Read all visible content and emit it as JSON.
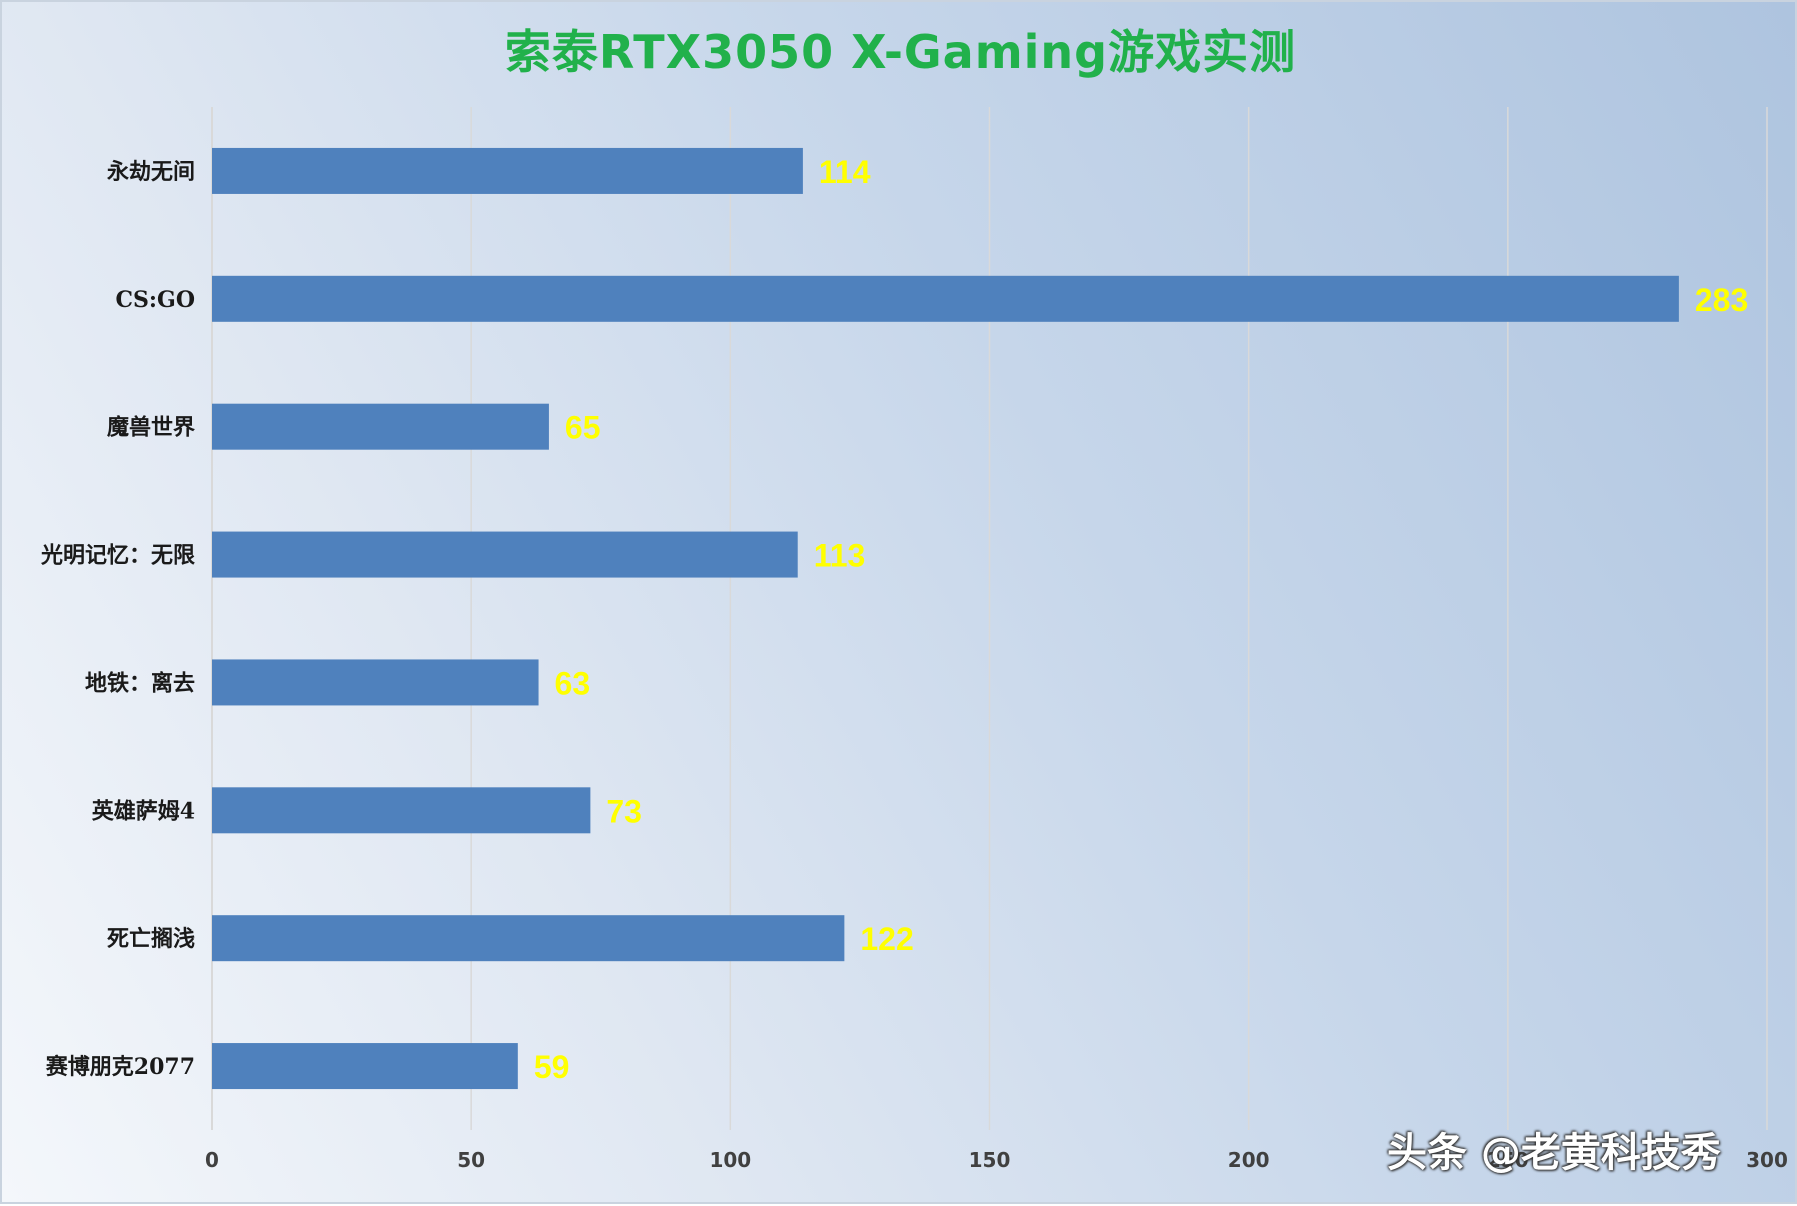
{
  "chart_data": {
    "type": "bar",
    "orientation": "horizontal",
    "title": "索泰RTX3050 X-Gaming游戏实测",
    "categories": [
      "永劫无间",
      "CS:GO",
      "魔兽世界",
      "光明记忆：无限",
      "地铁：离去",
      "英雄萨姆4",
      "死亡搁浅",
      "赛博朋克2077"
    ],
    "values": [
      114,
      283,
      65,
      113,
      63,
      73,
      122,
      59
    ],
    "xlim": [
      0,
      300
    ],
    "xticks": [
      "0",
      "50",
      "100",
      "150",
      "200",
      "250",
      "300"
    ],
    "grid": true,
    "bar_color": "#4f81bd",
    "label_color": "#ffff00",
    "title_color": "#21b14b"
  },
  "watermark": "头条 @老黄科技秀"
}
